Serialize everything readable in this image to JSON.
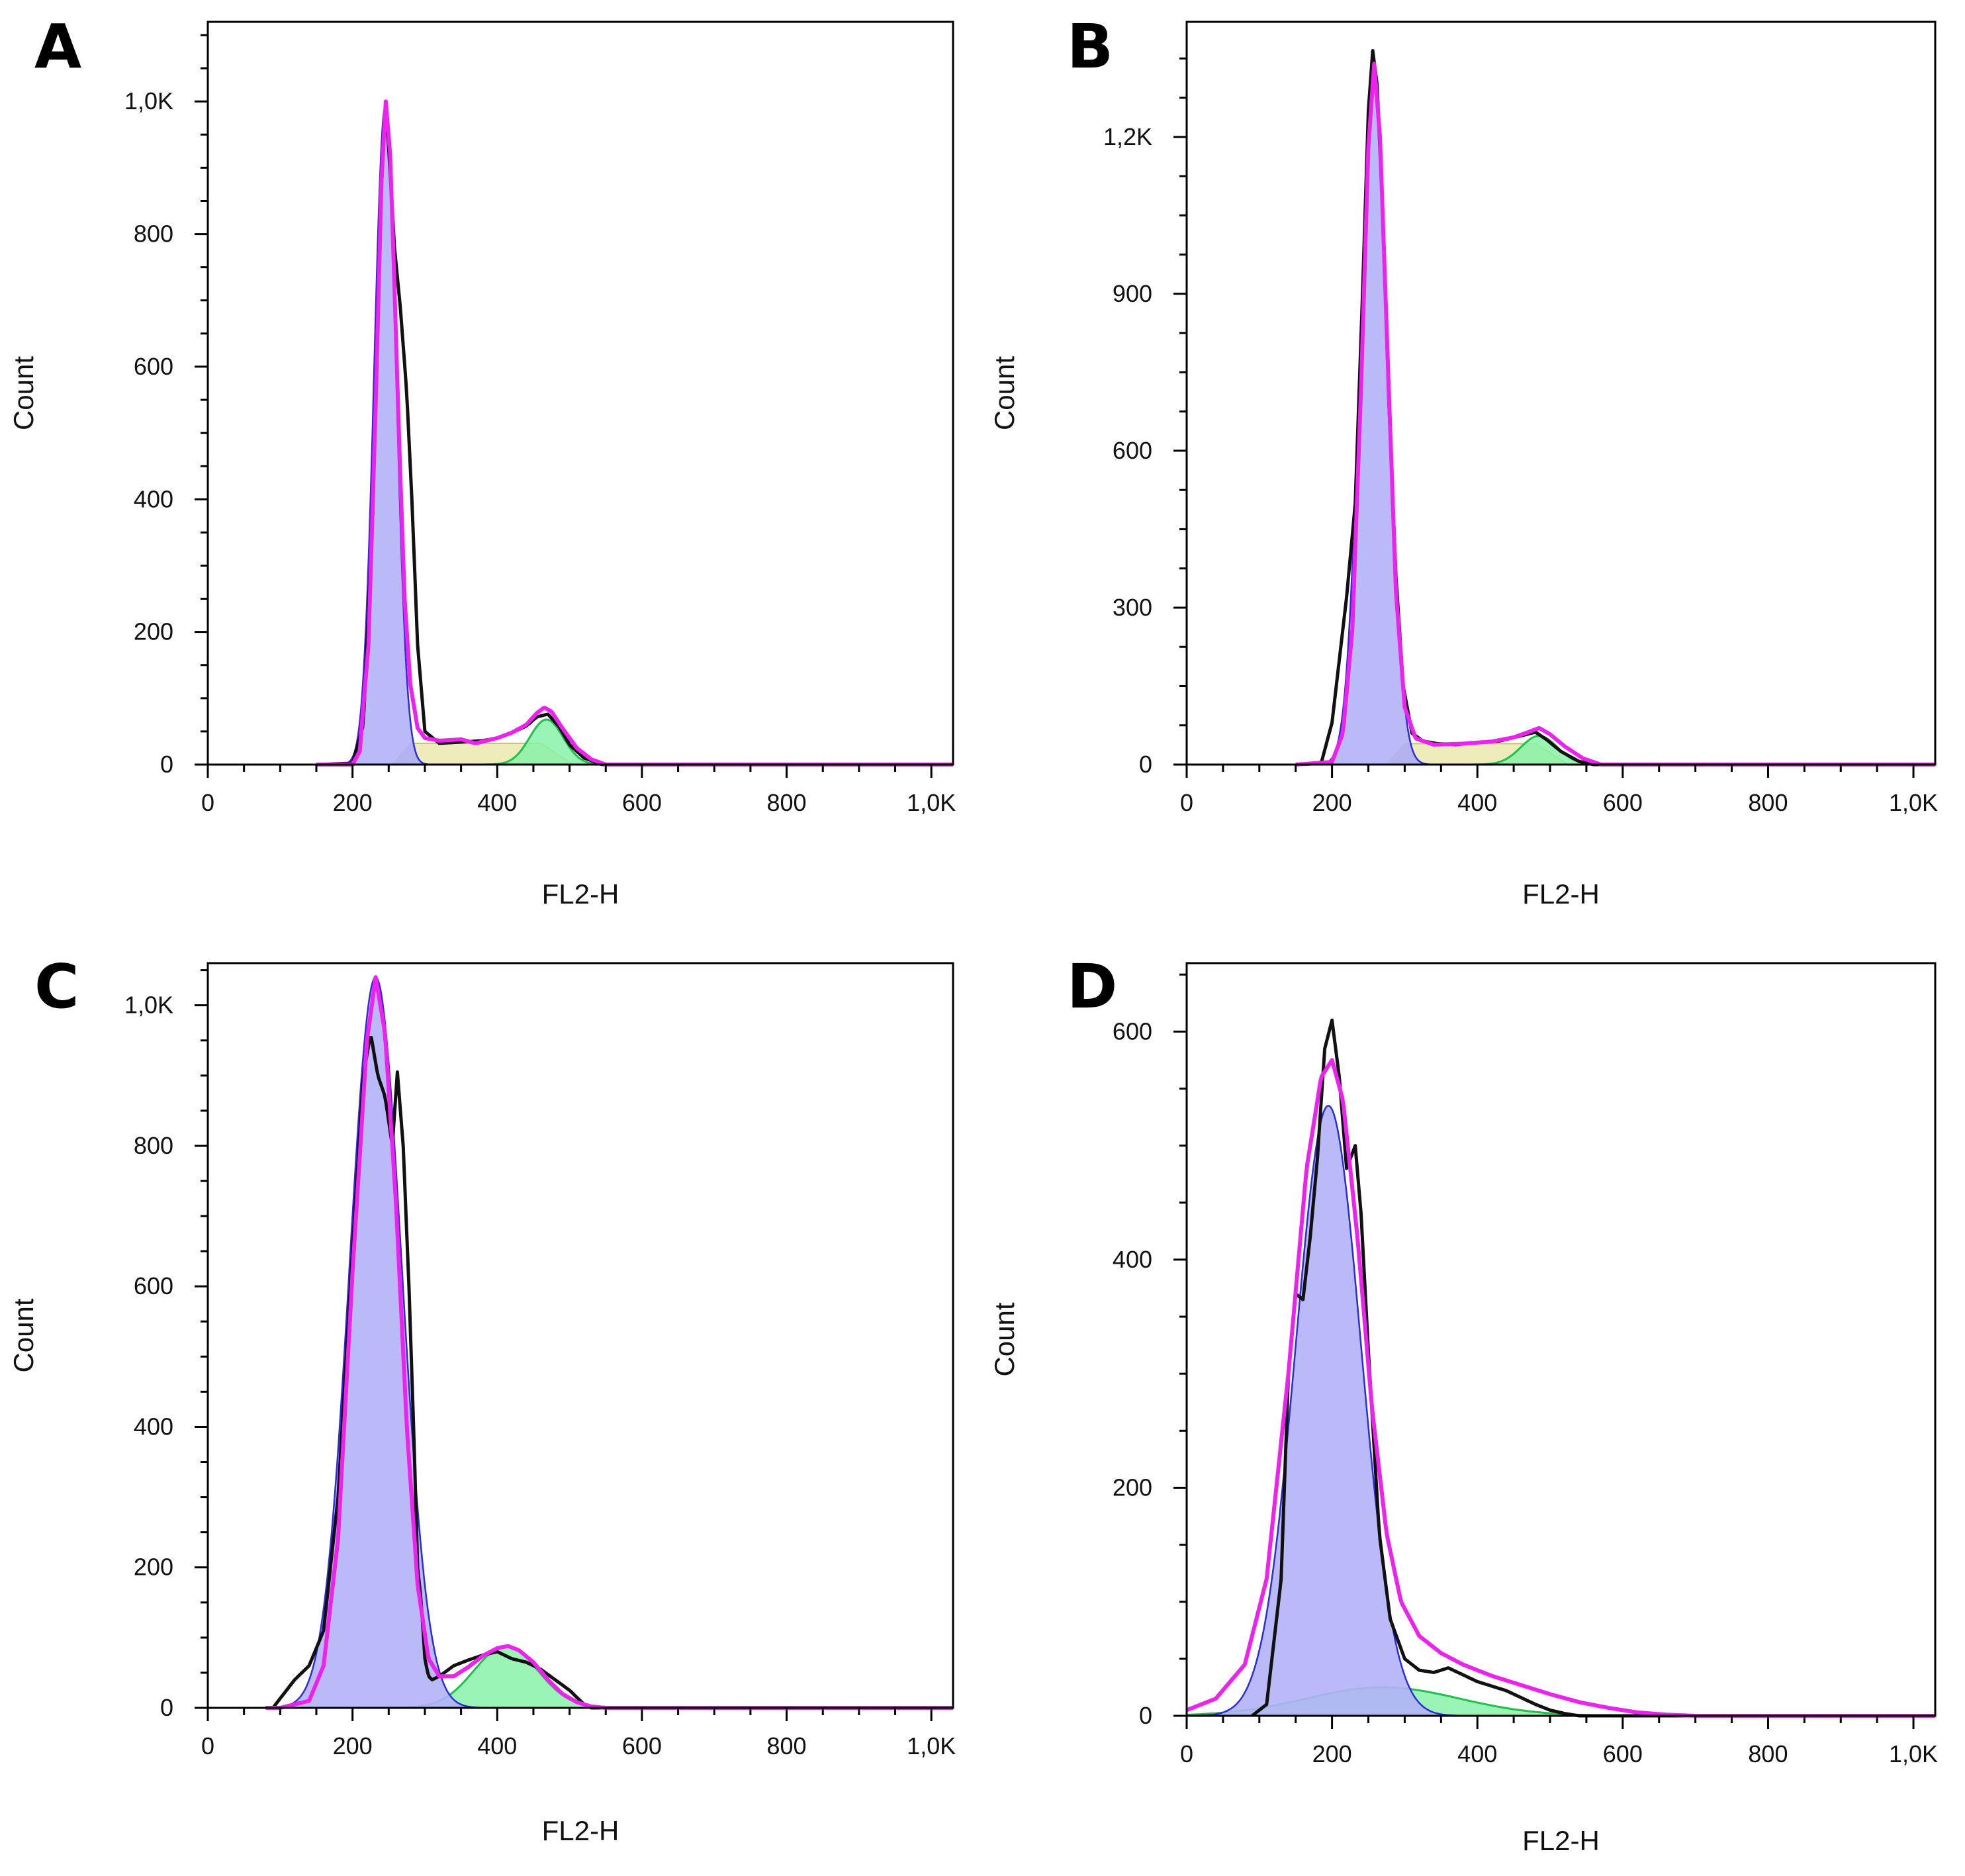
{
  "figure": {
    "panels": [
      "A",
      "B",
      "C",
      "D"
    ]
  },
  "colors": {
    "g1_fill": "#b3b3f7",
    "g1_line": "#2b2bdf",
    "s_fill": "#ece9b0",
    "g2_fill": "#88f2a8",
    "g2_line": "#1fc14a",
    "overlap_fill": "#9a9a9a",
    "fit_line": "#ee22ee",
    "data_line": "#111111",
    "axis": "#000000"
  },
  "chart_data": [
    {
      "panel": "A",
      "type": "area",
      "title": "",
      "xlabel": "FL2-H",
      "ylabel": "Count",
      "xlim": [
        0,
        1030
      ],
      "ylim": [
        0,
        1120
      ],
      "xticks": [
        0,
        200,
        400,
        600,
        800,
        1000
      ],
      "xtick_labels": [
        "0",
        "200",
        "400",
        "600",
        "800",
        "1,0K"
      ],
      "yticks": [
        0,
        200,
        400,
        600,
        800,
        1000
      ],
      "ytick_labels": [
        "0",
        "200",
        "400",
        "600",
        "800",
        "1,0K"
      ],
      "components": {
        "g1": {
          "mean": 245,
          "sd": 15,
          "peak": 990
        },
        "g2": {
          "mean": 468,
          "sd": 23,
          "peak": 68
        },
        "s_phase": {
          "from": 280,
          "to": 460,
          "level": 32
        }
      },
      "data_series": {
        "name": "raw histogram",
        "x": [
          150,
          200,
          215,
          228,
          238,
          245,
          250,
          258,
          266,
          275,
          282,
          290,
          300,
          320,
          350,
          380,
          400,
          420,
          440,
          455,
          470,
          485,
          500,
          520,
          545,
          600,
          700,
          1000
        ],
        "y": [
          0,
          2,
          60,
          380,
          820,
          1000,
          930,
          780,
          690,
          560,
          400,
          180,
          50,
          32,
          34,
          36,
          40,
          48,
          58,
          72,
          76,
          58,
          30,
          10,
          0,
          0,
          0,
          0
        ]
      },
      "fit_series": {
        "name": "model fit",
        "x": [
          150,
          200,
          210,
          222,
          232,
          240,
          246,
          252,
          258,
          265,
          272,
          280,
          290,
          300,
          320,
          350,
          370,
          400,
          420,
          440,
          455,
          465,
          475,
          490,
          510,
          530,
          550,
          600,
          1000
        ],
        "y": [
          0,
          0,
          20,
          180,
          540,
          880,
          1000,
          920,
          720,
          470,
          250,
          120,
          55,
          40,
          36,
          38,
          32,
          40,
          48,
          60,
          78,
          86,
          80,
          55,
          25,
          8,
          0,
          0,
          0
        ]
      }
    },
    {
      "panel": "B",
      "type": "area",
      "title": "",
      "xlabel": "FL2-H",
      "ylabel": "Count",
      "xlim": [
        0,
        1030
      ],
      "ylim": [
        0,
        1420
      ],
      "xticks": [
        0,
        200,
        400,
        600,
        800,
        1000
      ],
      "xtick_labels": [
        "0",
        "200",
        "400",
        "600",
        "800",
        "1,0K"
      ],
      "yticks": [
        0,
        300,
        600,
        900,
        1200
      ],
      "ytick_labels": [
        "0",
        "300",
        "600",
        "900",
        "1,2K"
      ],
      "components": {
        "g1": {
          "mean": 258,
          "sd": 19,
          "peak": 1330
        },
        "g2": {
          "mean": 485,
          "sd": 25,
          "peak": 55
        },
        "s_phase": {
          "from": 300,
          "to": 480,
          "level": 40
        }
      },
      "data_series": {
        "name": "raw histogram",
        "x": [
          150,
          185,
          200,
          210,
          220,
          232,
          242,
          250,
          256,
          262,
          270,
          278,
          288,
          298,
          310,
          325,
          345,
          370,
          400,
          430,
          460,
          480,
          495,
          515,
          540,
          560,
          600,
          1000
        ],
        "y": [
          0,
          2,
          80,
          200,
          320,
          500,
          900,
          1250,
          1365,
          1300,
          1050,
          700,
          360,
          150,
          60,
          45,
          40,
          38,
          42,
          45,
          55,
          62,
          48,
          25,
          6,
          0,
          0,
          0
        ]
      },
      "fit_series": {
        "name": "model fit",
        "x": [
          150,
          200,
          215,
          228,
          240,
          250,
          258,
          266,
          276,
          288,
          300,
          315,
          340,
          380,
          420,
          450,
          470,
          485,
          500,
          520,
          545,
          570,
          600,
          1000
        ],
        "y": [
          0,
          5,
          60,
          260,
          720,
          1180,
          1340,
          1200,
          800,
          330,
          110,
          50,
          38,
          40,
          44,
          52,
          62,
          70,
          58,
          35,
          12,
          0,
          0,
          0
        ]
      }
    },
    {
      "panel": "C",
      "type": "area",
      "title": "",
      "xlabel": "FL2-H",
      "ylabel": "Count",
      "xlim": [
        0,
        1030
      ],
      "ylim": [
        0,
        1060
      ],
      "xticks": [
        0,
        200,
        400,
        600,
        800,
        1000
      ],
      "xtick_labels": [
        "0",
        "200",
        "400",
        "600",
        "800",
        "1,0K"
      ],
      "yticks": [
        0,
        200,
        400,
        600,
        800,
        1000
      ],
      "ytick_labels": [
        "0",
        "200",
        "400",
        "600",
        "800",
        "1,0K"
      ],
      "components": {
        "g1": {
          "mean": 232,
          "sd": 36,
          "peak": 1040
        },
        "g2": {
          "mean": 412,
          "sd": 44,
          "peak": 88
        }
      },
      "data_series": {
        "name": "raw histogram",
        "x": [
          80,
          90,
          105,
          120,
          140,
          160,
          180,
          200,
          215,
          225,
          235,
          245,
          255,
          262,
          270,
          278,
          285,
          290,
          295,
          300,
          305,
          310,
          320,
          340,
          360,
          380,
          400,
          420,
          440,
          460,
          480,
          500,
          520,
          530,
          600,
          1000
        ],
        "y": [
          0,
          0,
          20,
          40,
          60,
          110,
          300,
          650,
          900,
          960,
          900,
          870,
          800,
          905,
          800,
          600,
          380,
          200,
          150,
          70,
          45,
          40,
          45,
          60,
          68,
          75,
          80,
          70,
          65,
          55,
          40,
          25,
          5,
          0,
          0,
          0
        ]
      },
      "fit_series": {
        "name": "model fit",
        "x": [
          80,
          100,
          140,
          160,
          180,
          200,
          220,
          232,
          245,
          260,
          275,
          290,
          305,
          320,
          340,
          360,
          380,
          400,
          415,
          430,
          450,
          470,
          490,
          510,
          530,
          550,
          1000
        ],
        "y": [
          0,
          0,
          10,
          60,
          240,
          620,
          950,
          1040,
          960,
          720,
          400,
          175,
          70,
          45,
          45,
          58,
          74,
          85,
          88,
          82,
          65,
          40,
          20,
          8,
          2,
          0,
          0
        ]
      }
    },
    {
      "panel": "D",
      "type": "area",
      "title": "",
      "xlabel": "FL2-H",
      "ylabel": "Count",
      "xlim": [
        0,
        1030
      ],
      "ylim": [
        0,
        660
      ],
      "xticks": [
        0,
        200,
        400,
        600,
        800,
        1000
      ],
      "xtick_labels": [
        "0",
        "200",
        "400",
        "600",
        "800",
        "1,0K"
      ],
      "yticks": [
        0,
        200,
        400,
        600
      ],
      "ytick_labels": [
        "0",
        "200",
        "400",
        "600"
      ],
      "components": {
        "g1": {
          "mean": 195,
          "sd": 45,
          "peak": 535
        },
        "g2": {
          "mean": 270,
          "sd": 105,
          "peak": 25
        }
      },
      "data_series": {
        "name": "raw histogram",
        "x": [
          90,
          110,
          130,
          140,
          150,
          160,
          170,
          180,
          190,
          200,
          210,
          220,
          232,
          240,
          250,
          265,
          280,
          300,
          320,
          340,
          360,
          380,
          400,
          420,
          440,
          460,
          480,
          500,
          520,
          540,
          1000
        ],
        "y": [
          0,
          10,
          120,
          300,
          370,
          365,
          420,
          490,
          585,
          610,
          560,
          480,
          500,
          440,
          320,
          160,
          85,
          50,
          40,
          38,
          42,
          36,
          30,
          26,
          22,
          16,
          10,
          5,
          2,
          0,
          0
        ]
      },
      "fit_series": {
        "name": "model fit",
        "x": [
          0,
          40,
          80,
          110,
          140,
          165,
          185,
          200,
          215,
          235,
          255,
          275,
          295,
          320,
          350,
          380,
          420,
          460,
          500,
          540,
          580,
          620,
          660,
          700,
          1000
        ],
        "y": [
          5,
          15,
          45,
          120,
          300,
          480,
          560,
          575,
          540,
          420,
          270,
          160,
          100,
          70,
          55,
          45,
          35,
          27,
          19,
          12,
          7,
          3,
          1,
          0,
          0
        ]
      }
    }
  ]
}
